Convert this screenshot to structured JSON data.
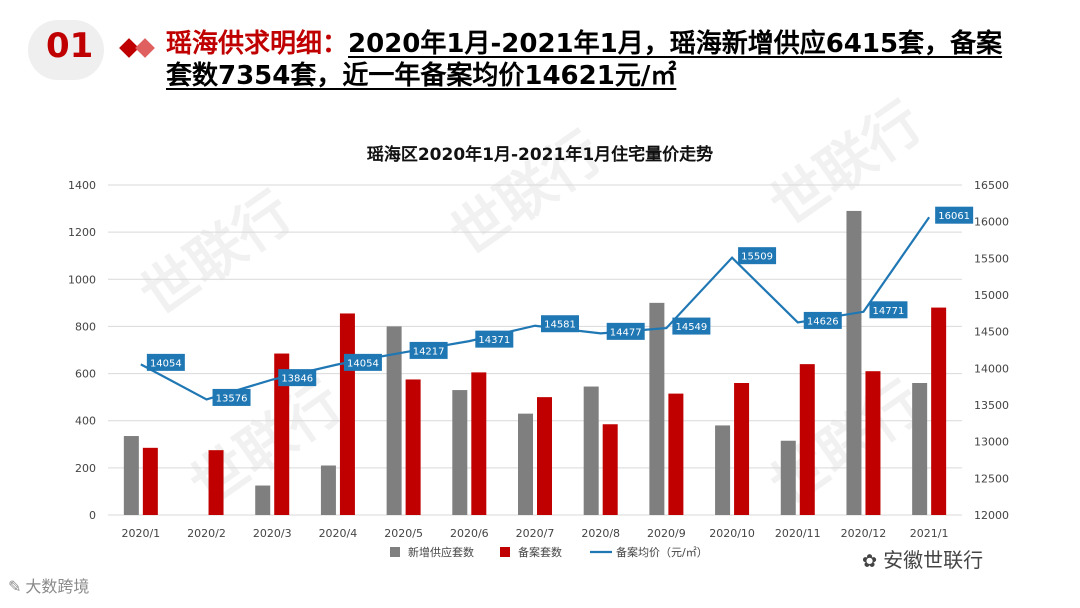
{
  "slide_number": "01",
  "heading": {
    "label": "瑶海供求明细：",
    "line1": "2020年1月-2021年1月，瑶海新增供应6415套，备案",
    "line2": "套数7354套，近一年备案均价14621元/㎡"
  },
  "watermark_text": "世联行",
  "footer": {
    "left_text": "大数跨境",
    "left_icon": "logo-icon",
    "right_text": "安徽世联行",
    "right_icon": "wechat-icon"
  },
  "colors": {
    "accent": "#c00000",
    "supply_bar": "#7f7f7f",
    "filing_bar": "#c00000",
    "price_line": "#1f77b4",
    "price_label_bg": "#1f77b4"
  },
  "chart_data": {
    "type": "bar",
    "title": "瑶海区2020年1月-2021年1月住宅量价走势",
    "categories": [
      "2020/1",
      "2020/2",
      "2020/3",
      "2020/4",
      "2020/5",
      "2020/6",
      "2020/7",
      "2020/8",
      "2020/9",
      "2020/10",
      "2020/11",
      "2020/12",
      "2021/1"
    ],
    "series": [
      {
        "name": "新增供应套数",
        "type": "bar",
        "axis": "left",
        "values": [
          335,
          0,
          125,
          210,
          800,
          530,
          430,
          545,
          900,
          380,
          315,
          1290,
          560
        ]
      },
      {
        "name": "备案套数",
        "type": "bar",
        "axis": "left",
        "values": [
          285,
          275,
          685,
          855,
          575,
          605,
          500,
          385,
          515,
          560,
          640,
          610,
          880
        ]
      },
      {
        "name": "备案均价（元/㎡）",
        "type": "line",
        "axis": "right",
        "values": [
          14054,
          13576,
          13846,
          14054,
          14217,
          14371,
          14581,
          14477,
          14549,
          15509,
          14626,
          14771,
          16061
        ],
        "labels": [
          "14054",
          "13576",
          "13846",
          "14054",
          "14217",
          "14371",
          "14581",
          "14477",
          "14549",
          "15509",
          "14626",
          "14771",
          "16061"
        ]
      }
    ],
    "ylim_left": [
      0,
      1400
    ],
    "yticks_left": [
      "0",
      "200",
      "400",
      "600",
      "800",
      "1000",
      "1200",
      "1400"
    ],
    "ylim_right": [
      12000,
      16500
    ],
    "yticks_right": [
      "12000",
      "12500",
      "13000",
      "13500",
      "14000",
      "14500",
      "15000",
      "15500",
      "16000",
      "16500"
    ],
    "grid": true,
    "legend_position": "bottom"
  }
}
